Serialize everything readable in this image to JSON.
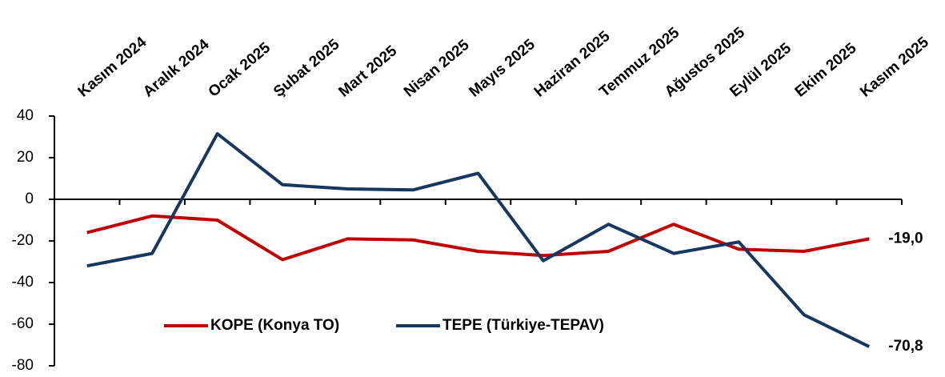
{
  "chart_data": {
    "type": "line",
    "categories": [
      "Kasım 2024",
      "Aralık 2024",
      "Ocak 2025",
      "Şubat 2025",
      "Mart 2025",
      "Nisan 2025",
      "Mayıs 2025",
      "Haziran 2025",
      "Temmuz 2025",
      "Ağustos 2025",
      "Eylül 2025",
      "Ekim 2025",
      "Kasım 2025"
    ],
    "series": [
      {
        "name": "KOPE (Konya TO)",
        "color": "#c00000",
        "values": [
          -16,
          -8,
          -10,
          -29,
          -19,
          -19.5,
          -25,
          -27,
          -25,
          -12,
          -24,
          -25,
          -19.0
        ],
        "value_labels": [
          null,
          null,
          null,
          null,
          null,
          null,
          null,
          null,
          null,
          null,
          null,
          null,
          "-19,0"
        ]
      },
      {
        "name": "TEPE (Türkiye-TEPAV)",
        "color": "#17375e",
        "values": [
          -32,
          -26,
          31.5,
          7,
          5,
          4.5,
          12.5,
          -29.5,
          -12,
          -26,
          -20.5,
          -55.5,
          -70.8
        ],
        "value_labels": [
          null,
          null,
          null,
          null,
          null,
          null,
          null,
          null,
          null,
          null,
          null,
          null,
          "-70,8"
        ]
      }
    ],
    "ylim": [
      -80,
      40
    ],
    "yticks": [
      -80,
      -60,
      -40,
      -20,
      0,
      20,
      40
    ],
    "legend": "lower-left"
  }
}
